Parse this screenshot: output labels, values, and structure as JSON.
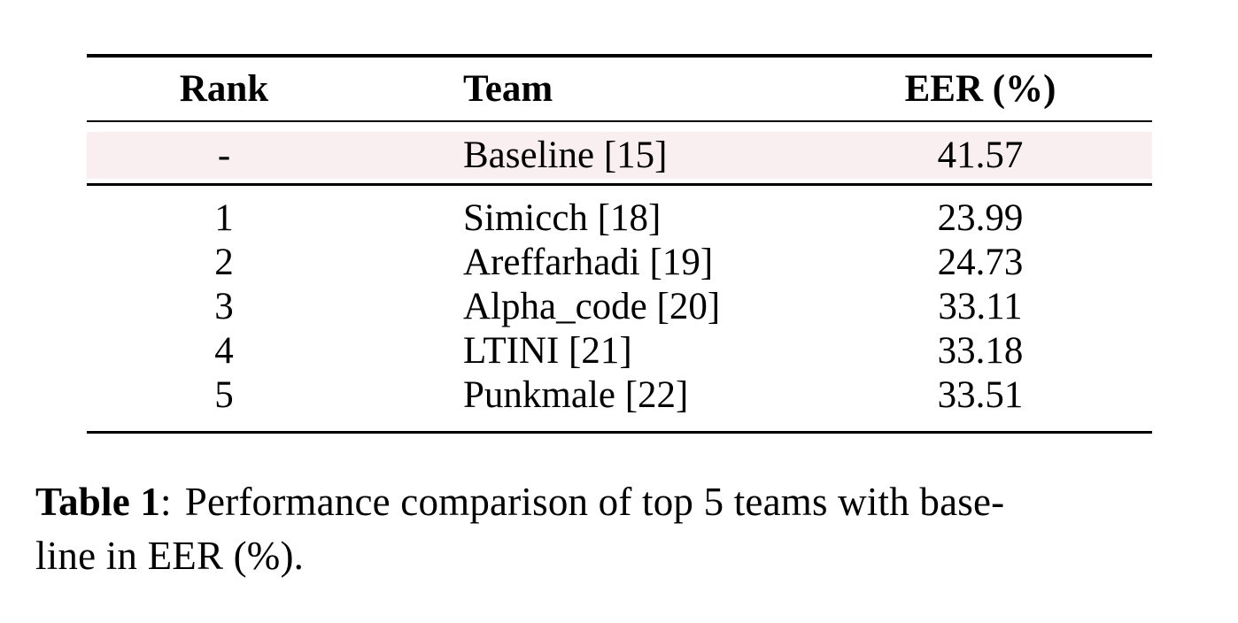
{
  "page": {
    "background": "#ffffff",
    "text_color": "#000000"
  },
  "table": {
    "highlight_color": "#f9eef0",
    "rule_color": "#000000",
    "columns": [
      "Rank",
      "Team",
      "EER (%)"
    ],
    "baseline": {
      "rank": "-",
      "team": "Baseline [15]",
      "eer": "41.57"
    },
    "rows": [
      {
        "rank": "1",
        "team": "Simicch [18]",
        "eer": "23.99"
      },
      {
        "rank": "2",
        "team": "Areffarhadi [19]",
        "eer": "24.73"
      },
      {
        "rank": "3",
        "team": "Alpha_code [20]",
        "eer": "33.11"
      },
      {
        "rank": "4",
        "team": "LTINI [21]",
        "eer": "33.18"
      },
      {
        "rank": "5",
        "team": "Punkmale [22]",
        "eer": "33.51"
      }
    ]
  },
  "caption": {
    "label": "Table 1",
    "colon": ":",
    "body": "Performance comparison of top 5 teams with base-\nline in EER (%)."
  },
  "chart_data": {
    "type": "table",
    "columns": [
      "Rank",
      "Team",
      "EER (%)"
    ],
    "rows": [
      [
        "-",
        "Baseline [15]",
        41.57
      ],
      [
        "1",
        "Simicch [18]",
        23.99
      ],
      [
        "2",
        "Areffarhadi [19]",
        24.73
      ],
      [
        "3",
        "Alpha_code [20]",
        33.11
      ],
      [
        "4",
        "LTINI [21]",
        33.18
      ],
      [
        "5",
        "Punkmale [22]",
        33.51
      ]
    ],
    "title": "Table 1: Performance comparison of top 5 teams with baseline in EER (%)."
  }
}
